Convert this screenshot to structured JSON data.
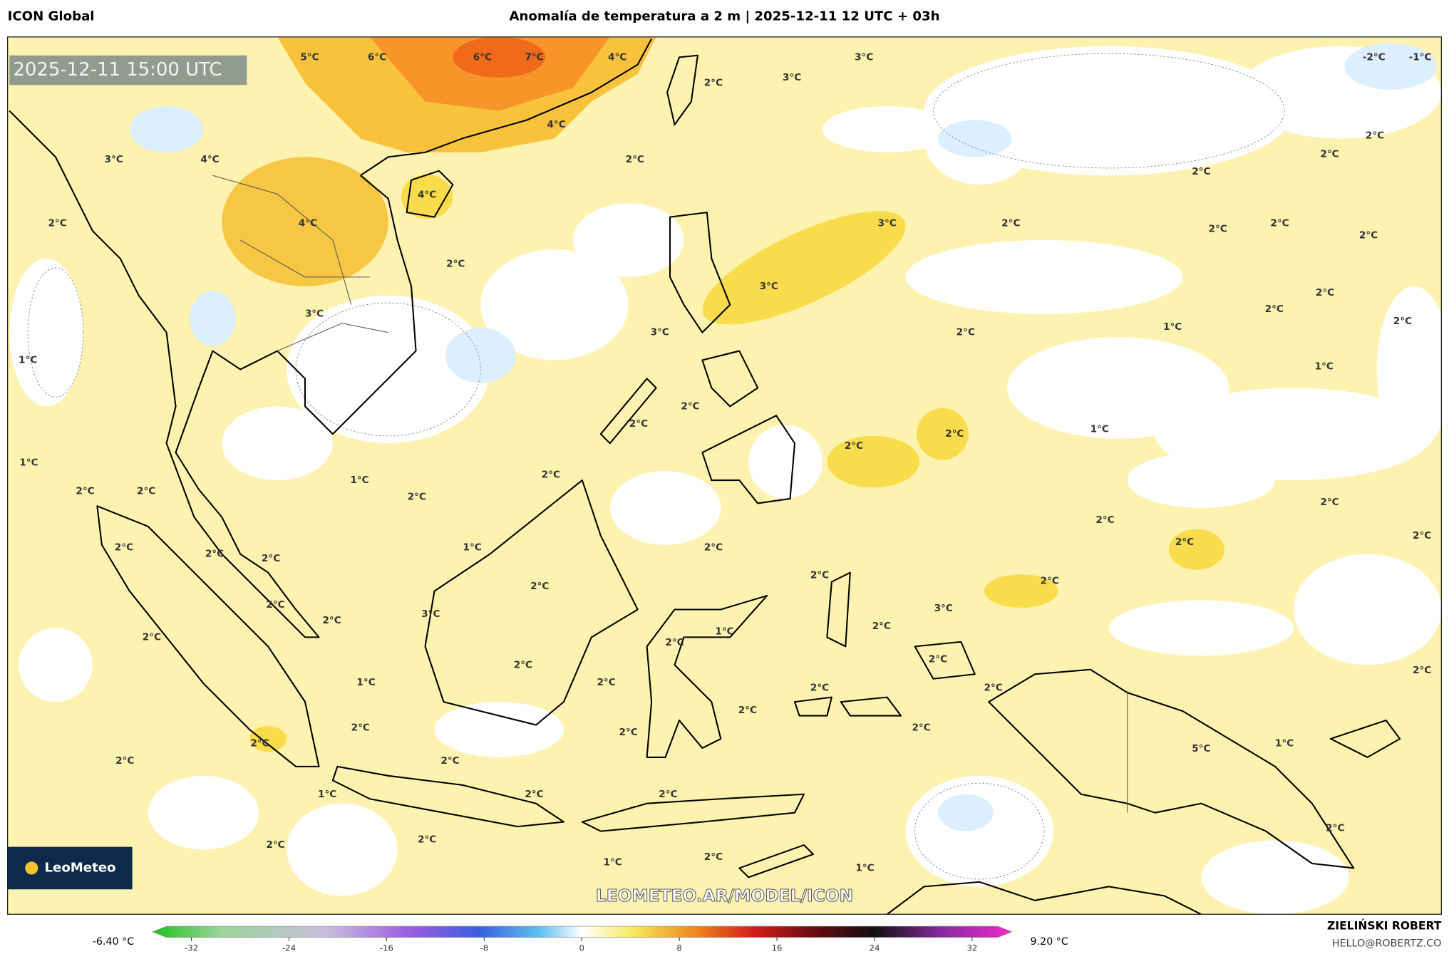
{
  "header": {
    "left": "ICON Global",
    "title": "Anomalía de temperatura a 2 m | 2025-12-11 12 UTC + 03h"
  },
  "map": {
    "valid_time": "2025-12-11 15:00 UTC",
    "logo": "LeoMeteo",
    "watermark": "LEOMETEO.AR/MODEL/ICON",
    "contour_labels": [
      "5°C",
      "6°C",
      "6°C",
      "7°C",
      "4°C",
      "3°C",
      "3°C",
      "2°C",
      "-2°C",
      "-1°C",
      "4°C",
      "3°C",
      "4°C",
      "2°C",
      "4°C",
      "2°C",
      "2°C",
      "2°C",
      "2°C",
      "4°C",
      "3°C",
      "2°C",
      "2°C",
      "2°C",
      "2°C",
      "2°C",
      "3°C",
      "2°C",
      "2°C",
      "2°C",
      "3°C",
      "3°C",
      "1°C",
      "2°C",
      "1°C",
      "1°C",
      "2°C",
      "2°C",
      "1°C",
      "2°C",
      "2°C",
      "1°C",
      "2°C",
      "2°C",
      "1°C",
      "2°C",
      "2°C",
      "2°C",
      "2°C",
      "2°C",
      "2°C",
      "1°C",
      "2°C",
      "2°C",
      "2°C",
      "2°C",
      "2°C",
      "2°C",
      "2°C",
      "3°C",
      "2°C",
      "3°C",
      "2°C",
      "2°C",
      "1°C",
      "2°C",
      "2°C",
      "2°C",
      "2°C",
      "2°C",
      "1°C",
      "2°C",
      "2°C",
      "2°C",
      "2°C",
      "2°C",
      "2°C",
      "2°C",
      "2°C",
      "5°C",
      "1°C",
      "2°C",
      "2°C",
      "1°C",
      "2°C",
      "2°C",
      "2°C",
      "2°C",
      "2°C",
      "1°C",
      "2°C",
      "1°C"
    ]
  },
  "colorbar": {
    "min_label": "-6.40 °C",
    "max_label": "9.20 °C",
    "ticks": [
      -32,
      -24,
      -16,
      -8,
      0,
      8,
      16,
      24,
      32
    ]
  },
  "footer": {
    "author": "ZIELIŃSKI ROBERT",
    "email": "HELLO@ROBERTZ.CO"
  }
}
